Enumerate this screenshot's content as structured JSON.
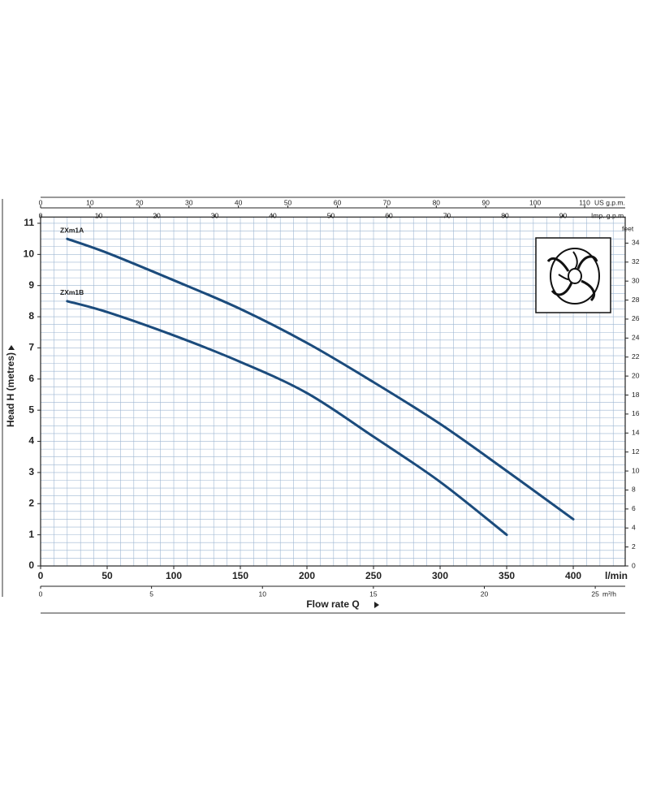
{
  "chart_data": {
    "type": "line",
    "x_label": "Flow rate Q",
    "x_unit": "l/min",
    "y_label": "Head H (metres)",
    "y2_unit": "feet",
    "xlim": [
      0,
      439
    ],
    "xticks": [
      0,
      50,
      100,
      150,
      200,
      250,
      300,
      350,
      400
    ],
    "ylim": [
      0,
      11.2
    ],
    "yticks": [
      0,
      1,
      2,
      3,
      4,
      5,
      6,
      7,
      8,
      9,
      10,
      11
    ],
    "y2lim": [
      0,
      36.745
    ],
    "y2ticks": [
      0,
      2,
      4,
      6,
      8,
      10,
      12,
      14,
      16,
      18,
      20,
      22,
      24,
      26,
      28,
      30,
      32,
      34
    ],
    "minor_grid": {
      "x": 10,
      "y": 0.25
    },
    "grid": true,
    "secondary_x_axes": [
      {
        "unit": "US g.p.m.",
        "position": "top",
        "xlim": [
          0,
          118.2
        ],
        "xticks": [
          0,
          10,
          20,
          30,
          40,
          50,
          60,
          70,
          80,
          90,
          100,
          110
        ]
      },
      {
        "unit": "Imp. g.p.m.",
        "position": "top-inner",
        "xlim": [
          0,
          100.7
        ],
        "xticks": [
          0,
          10,
          20,
          30,
          40,
          50,
          60,
          70,
          80,
          90
        ]
      },
      {
        "unit": "m³/h",
        "position": "bottom-outer",
        "xlim": [
          0,
          26.35
        ],
        "xticks": [
          0,
          5,
          10,
          15,
          20,
          25
        ]
      }
    ],
    "series": [
      {
        "name": "ZXm1A",
        "color": "#1b4b7c",
        "x": [
          20,
          50,
          100,
          150,
          200,
          250,
          300,
          350,
          400
        ],
        "values": [
          10.5,
          10.05,
          9.17,
          8.25,
          7.16,
          5.9,
          4.56,
          3.05,
          1.5
        ]
      },
      {
        "name": "ZXm1B",
        "color": "#1b4b7c",
        "x": [
          20,
          50,
          100,
          150,
          200,
          250,
          300,
          350
        ],
        "values": [
          8.5,
          8.15,
          7.4,
          6.55,
          5.55,
          4.15,
          2.7,
          1.0
        ]
      }
    ]
  }
}
